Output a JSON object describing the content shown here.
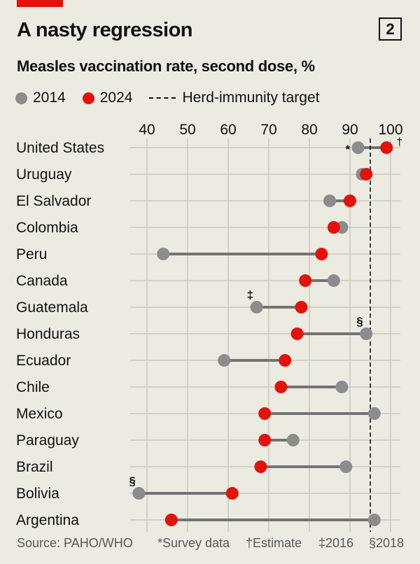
{
  "header": {
    "title": "A nasty regression",
    "chart_number": "2",
    "subtitle": "Measles vaccination rate, second dose, %"
  },
  "legend": {
    "items": [
      {
        "label": "2014",
        "color": "#8c8c8c"
      },
      {
        "label": "2024",
        "color": "#e3120b"
      },
      {
        "label": "Herd-immunity target",
        "style": "dashed"
      }
    ]
  },
  "footer": {
    "source": "Source: PAHO/WHO",
    "notes": [
      "*Survey data",
      "†Estimate",
      "‡2016",
      "§2018"
    ]
  },
  "chart_data": {
    "type": "dumbbell",
    "title": "A nasty regression",
    "subtitle": "Measles vaccination rate, second dose, %",
    "xlim": [
      35,
      100
    ],
    "xticks": [
      40,
      50,
      60,
      70,
      80,
      90,
      100
    ],
    "reference_line": {
      "label": "Herd-immunity target",
      "value": 95
    },
    "colors": {
      "y2014": "#8c8c8c",
      "y2024": "#e3120b",
      "connector": "#737373"
    },
    "rows": [
      {
        "country": "United States",
        "y2014": 92,
        "y2024": 99,
        "note2014": "*",
        "note2024": "†"
      },
      {
        "country": "Uruguay",
        "y2014": 93,
        "y2024": 94
      },
      {
        "country": "El Salvador",
        "y2014": 85,
        "y2024": 90
      },
      {
        "country": "Colombia",
        "y2014": 88,
        "y2024": 86
      },
      {
        "country": "Peru",
        "y2014": 44,
        "y2024": 83
      },
      {
        "country": "Canada",
        "y2014": 86,
        "y2024": 79
      },
      {
        "country": "Guatemala",
        "y2014": 67,
        "y2024": 78,
        "note2014": "‡"
      },
      {
        "country": "Honduras",
        "y2014": 94,
        "y2024": 77,
        "note2014": "§"
      },
      {
        "country": "Ecuador",
        "y2014": 59,
        "y2024": 74
      },
      {
        "country": "Chile",
        "y2014": 88,
        "y2024": 73
      },
      {
        "country": "Mexico",
        "y2014": 96,
        "y2024": 69
      },
      {
        "country": "Paraguay",
        "y2014": 76,
        "y2024": 69
      },
      {
        "country": "Brazil",
        "y2014": 89,
        "y2024": 68
      },
      {
        "country": "Bolivia",
        "y2014": 38,
        "y2024": 61,
        "note2014": "§"
      },
      {
        "country": "Argentina",
        "y2014": 96,
        "y2024": 46
      }
    ]
  }
}
